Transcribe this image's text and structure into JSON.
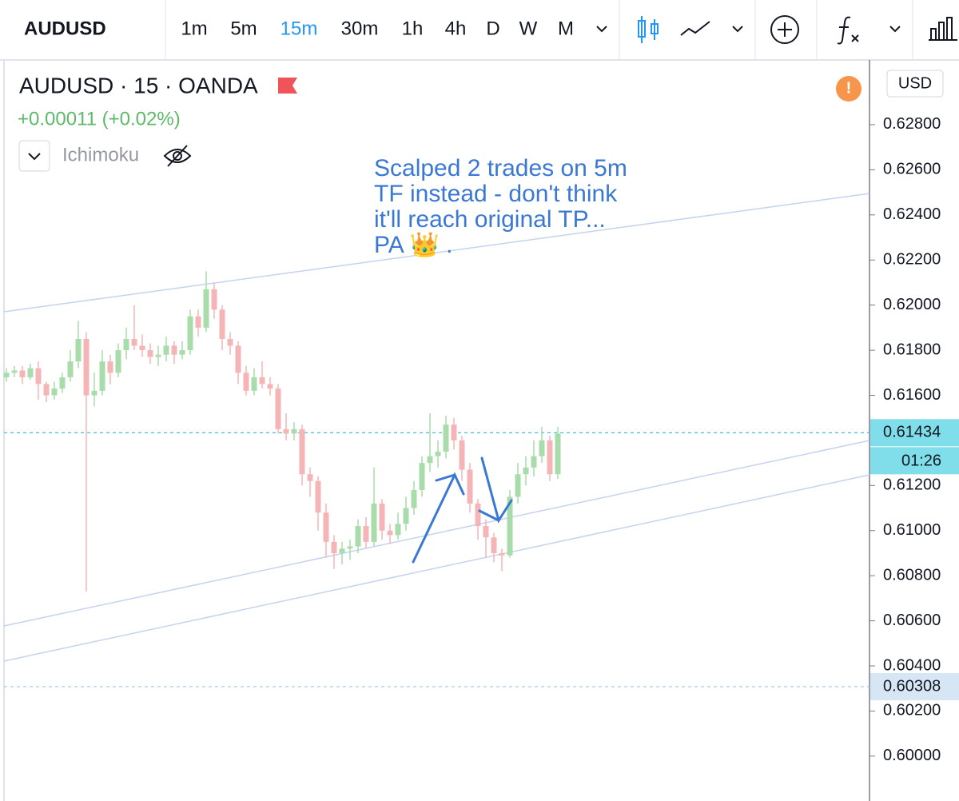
{
  "toolbar": {
    "symbol": "AUDUSD",
    "intervals": [
      "1m",
      "5m",
      "15m",
      "30m",
      "1h",
      "4h",
      "D",
      "W",
      "M"
    ],
    "active_interval": 2,
    "active_color": "#2196f3"
  },
  "legend": {
    "title": "AUDUSD · 15 · OANDA",
    "change": "+0.00011 (+0.02%)",
    "indicator": "Ichimoku",
    "currency": "USD"
  },
  "chart_data": {
    "type": "candlestick",
    "annotation": [
      "Scalped 2 trades on 5m",
      "TF instead - don't think",
      "it'll reach original TP...",
      "PA 👑 ."
    ],
    "up_color": "#a8dcab",
    "down_color": "#f5b5b7",
    "ylim": [
      0.59801,
      0.63087
    ],
    "yticks": [
      {
        "value": 0.6,
        "label": "0.60000"
      },
      {
        "value": 0.602,
        "label": "0.60200"
      },
      {
        "value": 0.604,
        "label": "0.60400"
      },
      {
        "value": 0.606,
        "label": "0.60600"
      },
      {
        "value": 0.608,
        "label": "0.60800"
      },
      {
        "value": 0.61,
        "label": "0.61000"
      },
      {
        "value": 0.612,
        "label": "0.61200"
      },
      {
        "value": 0.614,
        "label": "0.61400"
      },
      {
        "value": 0.616,
        "label": "0.61600"
      },
      {
        "value": 0.618,
        "label": "0.61800"
      },
      {
        "value": 0.62,
        "label": "0.62000"
      },
      {
        "value": 0.622,
        "label": "0.62200"
      },
      {
        "value": 0.624,
        "label": "0.62400"
      },
      {
        "value": 0.626,
        "label": "0.62600"
      },
      {
        "value": 0.628,
        "label": "0.62800"
      }
    ],
    "last_price": {
      "value": 0.61434,
      "label": "0.61434"
    },
    "countdown": "01:26",
    "ref_price": {
      "value": 0.60308,
      "label": "0.60308"
    },
    "ohlc": [
      [
        0.6168,
        0.6172,
        0.6166,
        0.617
      ],
      [
        0.617,
        0.6173,
        0.6168,
        0.6171
      ],
      [
        0.6171,
        0.6173,
        0.6165,
        0.6168
      ],
      [
        0.6168,
        0.6174,
        0.6167,
        0.6172
      ],
      [
        0.6172,
        0.6175,
        0.6158,
        0.6165
      ],
      [
        0.6165,
        0.6166,
        0.6157,
        0.616
      ],
      [
        0.616,
        0.6166,
        0.6158,
        0.6163
      ],
      [
        0.6163,
        0.617,
        0.6161,
        0.6168
      ],
      [
        0.6168,
        0.618,
        0.6166,
        0.6175
      ],
      [
        0.6175,
        0.6193,
        0.6172,
        0.6185
      ],
      [
        0.6185,
        0.6188,
        0.6073,
        0.616
      ],
      [
        0.616,
        0.617,
        0.6155,
        0.6162
      ],
      [
        0.6162,
        0.618,
        0.616,
        0.6175
      ],
      [
        0.6175,
        0.6178,
        0.6165,
        0.617
      ],
      [
        0.617,
        0.6183,
        0.6168,
        0.618
      ],
      [
        0.618,
        0.619,
        0.6176,
        0.6185
      ],
      [
        0.6185,
        0.62,
        0.618,
        0.6182
      ],
      [
        0.6182,
        0.6187,
        0.6177,
        0.618
      ],
      [
        0.618,
        0.6183,
        0.6174,
        0.6177
      ],
      [
        0.6177,
        0.6182,
        0.6173,
        0.6178
      ],
      [
        0.6178,
        0.6186,
        0.6175,
        0.6182
      ],
      [
        0.6182,
        0.6184,
        0.6174,
        0.6178
      ],
      [
        0.6178,
        0.6184,
        0.6176,
        0.618
      ],
      [
        0.618,
        0.6198,
        0.6178,
        0.6195
      ],
      [
        0.6195,
        0.6198,
        0.6186,
        0.619
      ],
      [
        0.619,
        0.6215,
        0.6188,
        0.6207
      ],
      [
        0.6207,
        0.621,
        0.6194,
        0.6198
      ],
      [
        0.6198,
        0.62,
        0.618,
        0.6185
      ],
      [
        0.6185,
        0.6188,
        0.6178,
        0.6182
      ],
      [
        0.6182,
        0.6184,
        0.6165,
        0.617
      ],
      [
        0.617,
        0.6173,
        0.616,
        0.6162
      ],
      [
        0.6162,
        0.6172,
        0.616,
        0.6168
      ],
      [
        0.6168,
        0.6175,
        0.6163,
        0.6165
      ],
      [
        0.6165,
        0.6168,
        0.616,
        0.6163
      ],
      [
        0.6163,
        0.6165,
        0.6143,
        0.6145
      ],
      [
        0.6145,
        0.6152,
        0.614,
        0.6143
      ],
      [
        0.6143,
        0.6148,
        0.614,
        0.6145
      ],
      [
        0.6145,
        0.6147,
        0.612,
        0.6125
      ],
      [
        0.6125,
        0.6128,
        0.6115,
        0.6122
      ],
      [
        0.6122,
        0.6124,
        0.61,
        0.6108
      ],
      [
        0.6108,
        0.6112,
        0.6088,
        0.6095
      ],
      [
        0.6095,
        0.6098,
        0.6083,
        0.609
      ],
      [
        0.609,
        0.6095,
        0.6085,
        0.6092
      ],
      [
        0.6092,
        0.6096,
        0.6087,
        0.6093
      ],
      [
        0.6093,
        0.6105,
        0.609,
        0.6102
      ],
      [
        0.6102,
        0.6106,
        0.6092,
        0.6095
      ],
      [
        0.6095,
        0.6128,
        0.6093,
        0.6112
      ],
      [
        0.6112,
        0.6114,
        0.6096,
        0.61
      ],
      [
        0.61,
        0.6103,
        0.6094,
        0.6098
      ],
      [
        0.6098,
        0.6108,
        0.6096,
        0.6103
      ],
      [
        0.6103,
        0.6115,
        0.61,
        0.611
      ],
      [
        0.611,
        0.6122,
        0.6107,
        0.6118
      ],
      [
        0.6118,
        0.6133,
        0.6115,
        0.613
      ],
      [
        0.613,
        0.6152,
        0.6126,
        0.6133
      ],
      [
        0.6133,
        0.614,
        0.6128,
        0.6135
      ],
      [
        0.6135,
        0.6151,
        0.6132,
        0.6147
      ],
      [
        0.6147,
        0.615,
        0.6136,
        0.614
      ],
      [
        0.614,
        0.6142,
        0.6122,
        0.6127
      ],
      [
        0.6127,
        0.613,
        0.6108,
        0.6112
      ],
      [
        0.6112,
        0.6114,
        0.6096,
        0.6102
      ],
      [
        0.6102,
        0.6105,
        0.6088,
        0.6097
      ],
      [
        0.6097,
        0.6099,
        0.6086,
        0.609
      ],
      [
        0.609,
        0.6092,
        0.6082,
        0.6089
      ],
      [
        0.6089,
        0.6118,
        0.6088,
        0.6115
      ],
      [
        0.6115,
        0.613,
        0.6112,
        0.6125
      ],
      [
        0.6125,
        0.6133,
        0.612,
        0.6128
      ],
      [
        0.6128,
        0.614,
        0.6124,
        0.6133
      ],
      [
        0.6133,
        0.6146,
        0.613,
        0.614
      ],
      [
        0.614,
        0.6142,
        0.6122,
        0.6125
      ],
      [
        0.6125,
        0.6146,
        0.6123,
        0.6143
      ]
    ]
  }
}
